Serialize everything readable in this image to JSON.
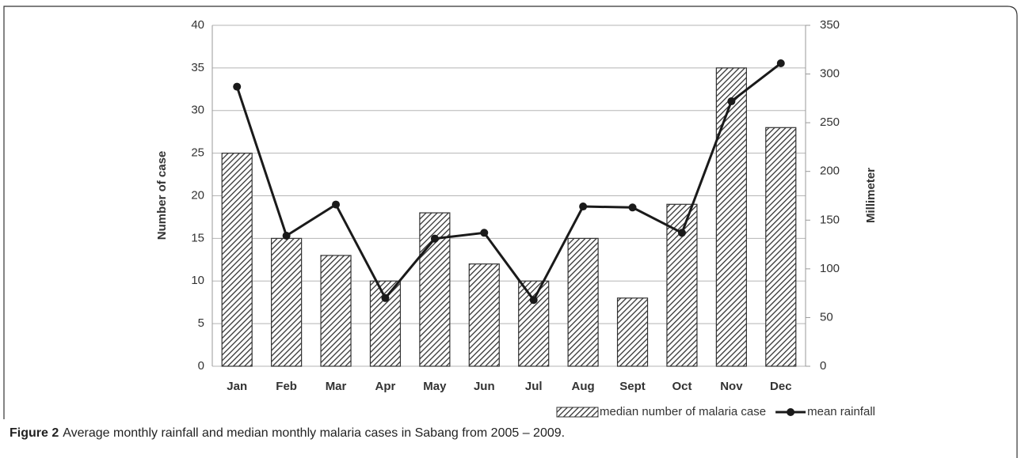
{
  "chart_data": {
    "type": "bar",
    "categories": [
      "Jan",
      "Feb",
      "Mar",
      "Apr",
      "May",
      "Jun",
      "Jul",
      "Aug",
      "Sept",
      "Oct",
      "Nov",
      "Dec"
    ],
    "series": [
      {
        "name": "median number of malaria case",
        "type": "bar",
        "axis": "y",
        "color": "#333333",
        "values": [
          25,
          15,
          13,
          10,
          18,
          12,
          10,
          15,
          8,
          19,
          35,
          28
        ]
      },
      {
        "name": "mean rainfall",
        "type": "line",
        "axis": "y2",
        "color": "#1a1a1a",
        "values": [
          287,
          134,
          166,
          70,
          131,
          137,
          68,
          164,
          163,
          137,
          272,
          311
        ]
      }
    ],
    "ylim": [
      0,
      40
    ],
    "yticks": [
      0,
      5,
      10,
      15,
      20,
      25,
      30,
      35,
      40
    ],
    "y2lim": [
      0,
      350
    ],
    "y2ticks": [
      0,
      50,
      100,
      150,
      200,
      250,
      300,
      350
    ],
    "ylabel": "Number of case",
    "y2label": "Millimeter",
    "grid": true,
    "legend": "bottom",
    "caption_label": "Figure 2",
    "caption": "Average monthly rainfall and median monthly malaria cases in Sabang from 2005 – 2009."
  }
}
